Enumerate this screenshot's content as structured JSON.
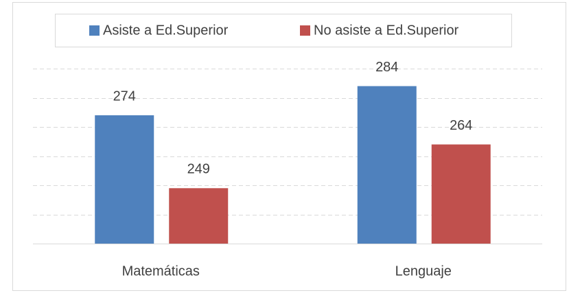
{
  "chart_data": {
    "type": "bar",
    "categories": [
      "Matemáticas",
      "Lenguaje"
    ],
    "series": [
      {
        "name": "Asiste a Ed.Superior",
        "color": "#4f81bd",
        "values": [
          274,
          284
        ]
      },
      {
        "name": "No asiste a Ed.Superior",
        "color": "#c0504d",
        "values": [
          249,
          264
        ]
      }
    ],
    "ylim": [
      230,
      290
    ],
    "yticks": [
      230,
      240,
      250,
      260,
      270,
      280,
      290
    ],
    "grid": true,
    "legend": "top"
  }
}
